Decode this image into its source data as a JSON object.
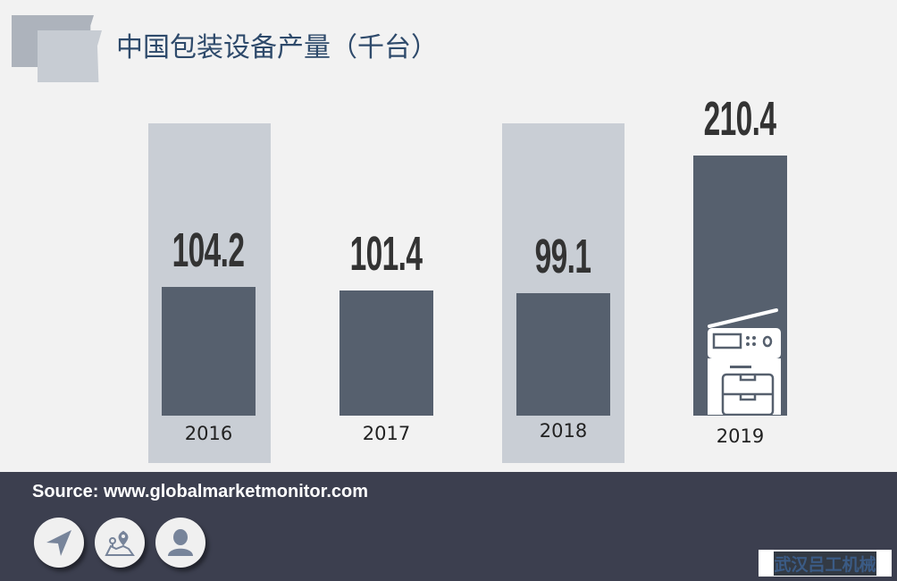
{
  "title": "中国包装设备产量（千台）",
  "chart_data": {
    "type": "bar",
    "title": "中国包装设备产量（千台）",
    "categories": [
      "2016",
      "2017",
      "2018",
      "2019"
    ],
    "values": [
      104.2,
      101.4,
      99.1,
      210.4
    ],
    "value_labels": [
      "104.2",
      "101.4",
      "99.1",
      "210.4"
    ],
    "grid": false,
    "colors": {
      "bar": "#56606e",
      "column_band": "#c9ced5"
    }
  },
  "footer": {
    "source": "Source: www.globalmarketmonitor.com",
    "icons": [
      "navigation-icon",
      "map-pin-icon",
      "user-icon"
    ]
  },
  "watermark": "武汉吕工机械"
}
